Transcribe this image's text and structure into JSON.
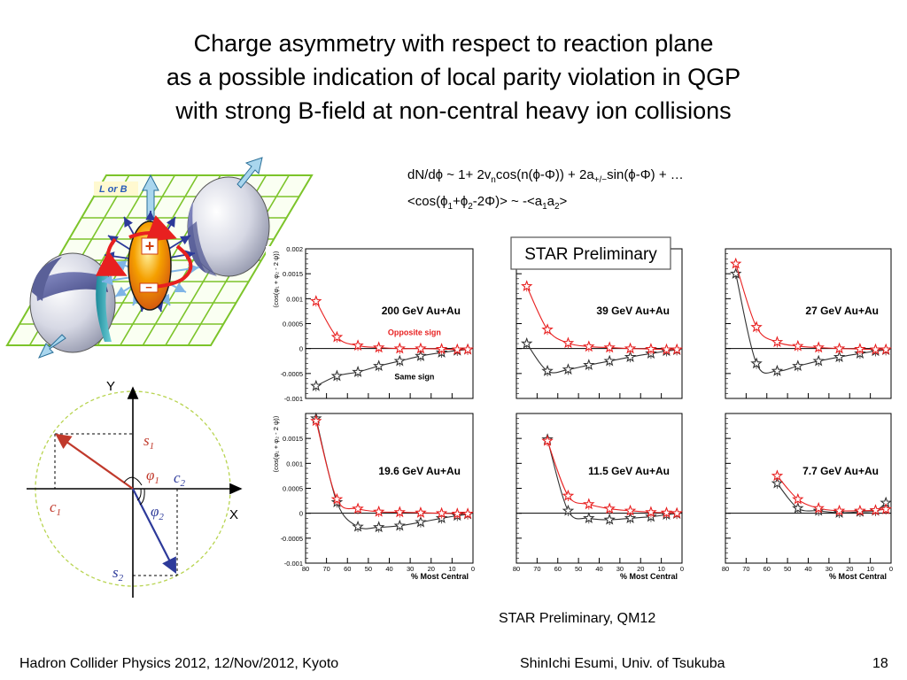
{
  "title": {
    "line1": "Charge asymmetry with respect to reaction plane",
    "line2": "as a possible indication of local parity violation in QGP",
    "line3": "with strong B-field at non-central heavy ion collisions"
  },
  "formula": {
    "f1_a": "dN/dϕ ~ 1+ 2v",
    "f1_sub_n": "n",
    "f1_b": "cos(n(ϕ-Φ)) + 2a",
    "f1_sub_pm": "+/−",
    "f1_c": "sin(ϕ-Φ) + …",
    "f2_a": "<cos(ϕ",
    "f2_sub1": "1",
    "f2_b": "+ϕ",
    "f2_sub2": "2",
    "f2_c": "-2Φ)> ~ -<a",
    "f2_sub3": "1",
    "f2_d": "a",
    "f2_sub4": "2",
    "f2_e": ">"
  },
  "illustration": {
    "l_or_b": "L or B",
    "plus": "+",
    "minus": "−"
  },
  "coord": {
    "y_label": "Y",
    "x_label": "X",
    "s1": "s",
    "s1_sub": "1",
    "s2": "s",
    "s2_sub": "2",
    "c1": "c",
    "c1_sub": "1",
    "c2": "c",
    "c2_sub": "2",
    "phi1": "φ",
    "phi1_sub": "1",
    "phi2": "φ",
    "phi2_sub": "2"
  },
  "preliminary_box": "STAR Preliminary",
  "caption": "STAR Preliminary, QM12",
  "footer": {
    "left": "Hadron Collider Physics 2012, 12/Nov/2012, Kyoto",
    "center": "ShinIchi Esumi, Univ. of Tsukuba",
    "page": "18"
  },
  "colors": {
    "opposite": "#e82020",
    "same": "#333333",
    "grid_green": "#7cc42a",
    "arrow_red": "#c0392b",
    "arrow_blue": "#2d3a9a"
  },
  "chart_data": {
    "type": "scatter",
    "ylabel": "⟨cos(φ₁ + φ₂ - 2 ψ)⟩",
    "xlabel": "% Most Central",
    "xlim": [
      80,
      0
    ],
    "ylim": [
      -0.001,
      0.002
    ],
    "x_ticks": [
      "80",
      "70",
      "60",
      "50",
      "40",
      "30",
      "20",
      "10",
      "0"
    ],
    "y_ticks": [
      "-0.001",
      "-0.0005",
      "0",
      "0.0005",
      "0.001",
      "0.0015",
      "0.002"
    ],
    "opposite_label": "Opposite sign",
    "same_label": "Same sign",
    "panels": [
      {
        "label": "200 GeV Au+Au",
        "opposite": [
          [
            75,
            0.00095
          ],
          [
            65,
            0.00023
          ],
          [
            55,
            6e-05
          ],
          [
            45,
            2e-05
          ],
          [
            35,
            0.0
          ],
          [
            25,
            0.0
          ],
          [
            15,
            -1e-05
          ],
          [
            7.5,
            -2e-05
          ],
          [
            2.5,
            -2e-05
          ]
        ],
        "same": [
          [
            75,
            -0.00075
          ],
          [
            65,
            -0.00055
          ],
          [
            55,
            -0.00047
          ],
          [
            45,
            -0.00035
          ],
          [
            35,
            -0.00025
          ],
          [
            25,
            -0.00015
          ],
          [
            15,
            -8e-05
          ],
          [
            7.5,
            -4e-05
          ],
          [
            2.5,
            -2e-05
          ]
        ]
      },
      {
        "label": "39 GeV Au+Au",
        "opposite": [
          [
            75,
            0.00125
          ],
          [
            65,
            0.00038
          ],
          [
            55,
            0.00011
          ],
          [
            45,
            4e-05
          ],
          [
            35,
            2e-05
          ],
          [
            25,
            0.0
          ],
          [
            15,
            -1e-05
          ],
          [
            7.5,
            -2e-05
          ],
          [
            2.5,
            -2e-05
          ]
        ],
        "same": [
          [
            75,
            0.0001
          ],
          [
            65,
            -0.00045
          ],
          [
            55,
            -0.00042
          ],
          [
            45,
            -0.00033
          ],
          [
            35,
            -0.00025
          ],
          [
            25,
            -0.00017
          ],
          [
            15,
            -0.0001
          ],
          [
            7.5,
            -5e-05
          ],
          [
            2.5,
            -3e-05
          ]
        ]
      },
      {
        "label": "27 GeV Au+Au",
        "opposite": [
          [
            75,
            0.0017
          ],
          [
            65,
            0.00043
          ],
          [
            55,
            0.00013
          ],
          [
            45,
            5e-05
          ],
          [
            35,
            2e-05
          ],
          [
            25,
            0.0
          ],
          [
            15,
            -1e-05
          ],
          [
            7.5,
            -2e-05
          ],
          [
            2.5,
            -2e-05
          ]
        ],
        "same": [
          [
            75,
            0.0015
          ],
          [
            65,
            -0.0003
          ],
          [
            55,
            -0.00045
          ],
          [
            45,
            -0.00035
          ],
          [
            35,
            -0.00025
          ],
          [
            25,
            -0.00017
          ],
          [
            15,
            -0.0001
          ],
          [
            7.5,
            -5e-05
          ],
          [
            2.5,
            -3e-05
          ]
        ]
      },
      {
        "label": "19.6 GeV Au+Au",
        "opposite": [
          [
            75,
            0.00185
          ],
          [
            65,
            0.00028
          ],
          [
            55,
            9e-05
          ],
          [
            45,
            3e-05
          ],
          [
            35,
            2e-05
          ],
          [
            25,
            1e-05
          ],
          [
            15,
            0.0
          ],
          [
            7.5,
            -1e-05
          ],
          [
            2.5,
            -1e-05
          ]
        ],
        "same": [
          [
            75,
            0.0019
          ],
          [
            65,
            0.00022
          ],
          [
            55,
            -0.00027
          ],
          [
            45,
            -0.00028
          ],
          [
            35,
            -0.00025
          ],
          [
            25,
            -0.00018
          ],
          [
            15,
            -0.0001
          ],
          [
            7.5,
            -5e-05
          ],
          [
            2.5,
            -2e-05
          ]
        ]
      },
      {
        "label": "11.5 GeV Au+Au",
        "opposite": [
          [
            65,
            0.00145
          ],
          [
            55,
            0.00035
          ],
          [
            45,
            0.00018
          ],
          [
            35,
            9e-05
          ],
          [
            25,
            5e-05
          ],
          [
            15,
            2e-05
          ],
          [
            7.5,
            1e-05
          ],
          [
            2.5,
            0.0
          ]
        ],
        "same": [
          [
            65,
            0.00148
          ],
          [
            55,
            5e-05
          ],
          [
            45,
            -0.0001
          ],
          [
            35,
            -0.00013
          ],
          [
            25,
            -0.0001
          ],
          [
            15,
            -7e-05
          ],
          [
            7.5,
            -3e-05
          ],
          [
            2.5,
            -1e-05
          ]
        ]
      },
      {
        "label": "7.7 GeV Au+Au",
        "opposite": [
          [
            55,
            0.00075
          ],
          [
            45,
            0.00028
          ],
          [
            35,
            0.0001
          ],
          [
            25,
            5e-05
          ],
          [
            15,
            5e-05
          ],
          [
            7.5,
            6e-05
          ],
          [
            2.5,
            8e-05
          ]
        ],
        "same": [
          [
            55,
            0.0006
          ],
          [
            45,
            0.0001
          ],
          [
            35,
            5e-05
          ],
          [
            25,
            1e-05
          ],
          [
            15,
            3e-05
          ],
          [
            7.5,
            5e-05
          ],
          [
            2.5,
            0.00021
          ]
        ]
      }
    ]
  }
}
